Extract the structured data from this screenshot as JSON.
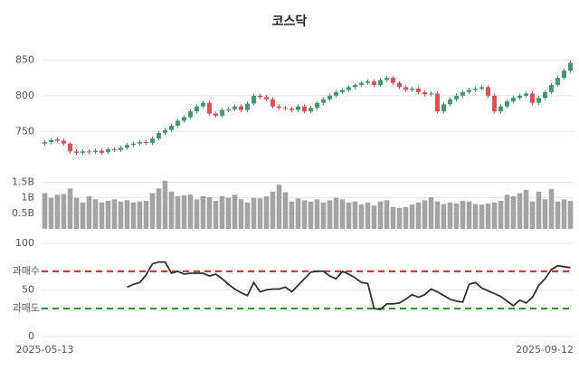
{
  "chart_data": [
    {
      "type": "candlestick",
      "title": "코스닥",
      "up_color": "#3a9a6e",
      "down_color": "#e8494c",
      "open": [
        733,
        735,
        739,
        737,
        733,
        722,
        720,
        722,
        721,
        723,
        721,
        725,
        724,
        727,
        731,
        733,
        735,
        734,
        740,
        748,
        752,
        758,
        765,
        770,
        778,
        785,
        790,
        775,
        772,
        780,
        781,
        785,
        780,
        789,
        800,
        798,
        795,
        785,
        783,
        782,
        780,
        785,
        778,
        783,
        790,
        795,
        800,
        805,
        808,
        812,
        815,
        818,
        820,
        815,
        822,
        825,
        818,
        812,
        808,
        810,
        805,
        802,
        803,
        778,
        788,
        795,
        800,
        805,
        808,
        810,
        812,
        800,
        778,
        785,
        792,
        797,
        800,
        803,
        790,
        797,
        805,
        815,
        825,
        835
      ],
      "high": [
        738,
        741,
        742,
        740,
        735,
        725,
        725,
        725,
        726,
        726,
        728,
        728,
        730,
        734,
        736,
        738,
        738,
        743,
        751,
        755,
        761,
        768,
        773,
        781,
        788,
        793,
        793,
        778,
        783,
        784,
        788,
        788,
        792,
        803,
        803,
        801,
        798,
        788,
        786,
        785,
        788,
        788,
        786,
        793,
        798,
        803,
        808,
        811,
        815,
        818,
        821,
        823,
        823,
        825,
        828,
        828,
        821,
        815,
        813,
        813,
        808,
        806,
        806,
        791,
        798,
        803,
        808,
        811,
        813,
        815,
        815,
        803,
        788,
        795,
        800,
        803,
        806,
        806,
        800,
        808,
        818,
        828,
        838,
        849
      ],
      "low": [
        730,
        732,
        734,
        730,
        719,
        717,
        717,
        718,
        718,
        717,
        718,
        721,
        721,
        724,
        728,
        730,
        731,
        731,
        737,
        745,
        749,
        755,
        762,
        767,
        775,
        782,
        772,
        769,
        769,
        777,
        778,
        777,
        777,
        786,
        795,
        792,
        782,
        780,
        779,
        777,
        777,
        775,
        775,
        780,
        787,
        792,
        797,
        802,
        805,
        809,
        812,
        815,
        812,
        812,
        819,
        815,
        809,
        805,
        805,
        802,
        799,
        799,
        775,
        775,
        785,
        792,
        797,
        802,
        805,
        807,
        797,
        775,
        775,
        782,
        789,
        794,
        797,
        787,
        787,
        794,
        802,
        812,
        822,
        832
      ],
      "close": [
        735,
        738,
        737,
        733,
        722,
        720,
        722,
        721,
        723,
        720,
        725,
        724,
        727,
        731,
        733,
        735,
        734,
        740,
        748,
        752,
        758,
        765,
        770,
        778,
        785,
        790,
        775,
        772,
        780,
        781,
        785,
        780,
        789,
        800,
        798,
        795,
        785,
        783,
        782,
        780,
        785,
        778,
        783,
        790,
        795,
        800,
        805,
        808,
        812,
        815,
        818,
        820,
        815,
        822,
        825,
        818,
        812,
        808,
        810,
        805,
        802,
        803,
        778,
        788,
        795,
        800,
        805,
        808,
        810,
        812,
        800,
        778,
        785,
        792,
        797,
        800,
        803,
        790,
        797,
        805,
        815,
        825,
        835,
        846
      ],
      "ylim": [
        725,
        858
      ],
      "yticks": [
        750,
        800,
        850
      ],
      "grid": true
    },
    {
      "type": "bar",
      "color": "#a3a3a3",
      "values": [
        1.15,
        1.0,
        1.1,
        1.12,
        1.3,
        1.0,
        0.85,
        1.05,
        0.95,
        0.85,
        0.9,
        0.95,
        0.88,
        0.92,
        0.85,
        0.88,
        0.9,
        1.15,
        1.3,
        1.55,
        1.2,
        1.05,
        1.08,
        1.1,
        0.95,
        1.05,
        1.02,
        0.9,
        1.05,
        1.0,
        1.1,
        0.95,
        0.85,
        1.0,
        0.98,
        1.05,
        1.2,
        1.42,
        1.18,
        0.88,
        0.98,
        0.92,
        0.88,
        0.95,
        0.85,
        0.92,
        1.0,
        0.95,
        0.85,
        0.88,
        0.78,
        0.85,
        0.75,
        0.88,
        0.92,
        0.7,
        0.68,
        0.7,
        0.78,
        0.85,
        0.92,
        1.02,
        0.88,
        0.8,
        0.85,
        0.82,
        0.9,
        0.88,
        0.8,
        0.78,
        0.82,
        0.85,
        0.9,
        1.1,
        1.05,
        1.15,
        1.25,
        0.88,
        1.2,
        0.95,
        1.28,
        0.88,
        0.95,
        0.9
      ],
      "ylim": [
        0,
        1.6
      ],
      "yticks": [
        {
          "value": 0.5,
          "label": "0.5B"
        },
        {
          "value": 1,
          "label": "1B"
        },
        {
          "value": 1.5,
          "label": "1.5B"
        }
      ],
      "grid": true
    },
    {
      "type": "line",
      "color": "#333333",
      "values": [
        null,
        null,
        null,
        null,
        null,
        null,
        null,
        null,
        null,
        null,
        null,
        null,
        null,
        53,
        56,
        58,
        66,
        78,
        80,
        80,
        68,
        70,
        67,
        68,
        68,
        68,
        65,
        67,
        62,
        56,
        51,
        47,
        44,
        58,
        48,
        50,
        51,
        51,
        53,
        48,
        55,
        62,
        69,
        70,
        70,
        65,
        62,
        70,
        67,
        63,
        58,
        57,
        30,
        29,
        35,
        35,
        36,
        40,
        45,
        42,
        45,
        51,
        48,
        44,
        40,
        38,
        37,
        56,
        58,
        52,
        49,
        46,
        43,
        38,
        33,
        39,
        36,
        42,
        55,
        62,
        72,
        76,
        75,
        74
      ],
      "ylim": [
        0,
        100
      ],
      "yticks": [
        0,
        50,
        100
      ],
      "grid": true,
      "hlines": [
        {
          "value": 70,
          "label": "과매수",
          "color": "#e02020"
        },
        {
          "value": 30,
          "label": "과매도",
          "color": "#209020"
        }
      ],
      "categories": [
        "2025-05-13",
        null,
        null,
        null,
        null,
        null,
        null,
        null,
        null,
        null,
        null,
        null,
        null,
        null,
        null,
        null,
        null,
        null,
        null,
        null,
        null,
        null,
        null,
        null,
        null,
        null,
        null,
        null,
        null,
        null,
        null,
        null,
        null,
        null,
        null,
        null,
        null,
        null,
        null,
        null,
        null,
        null,
        null,
        null,
        null,
        null,
        null,
        null,
        null,
        null,
        null,
        null,
        null,
        null,
        null,
        null,
        null,
        null,
        null,
        null,
        null,
        null,
        null,
        null,
        null,
        null,
        null,
        null,
        null,
        null,
        null,
        null,
        null,
        null,
        null,
        null,
        null,
        null,
        null,
        null,
        null,
        null,
        null,
        "2025-09-12"
      ]
    }
  ]
}
